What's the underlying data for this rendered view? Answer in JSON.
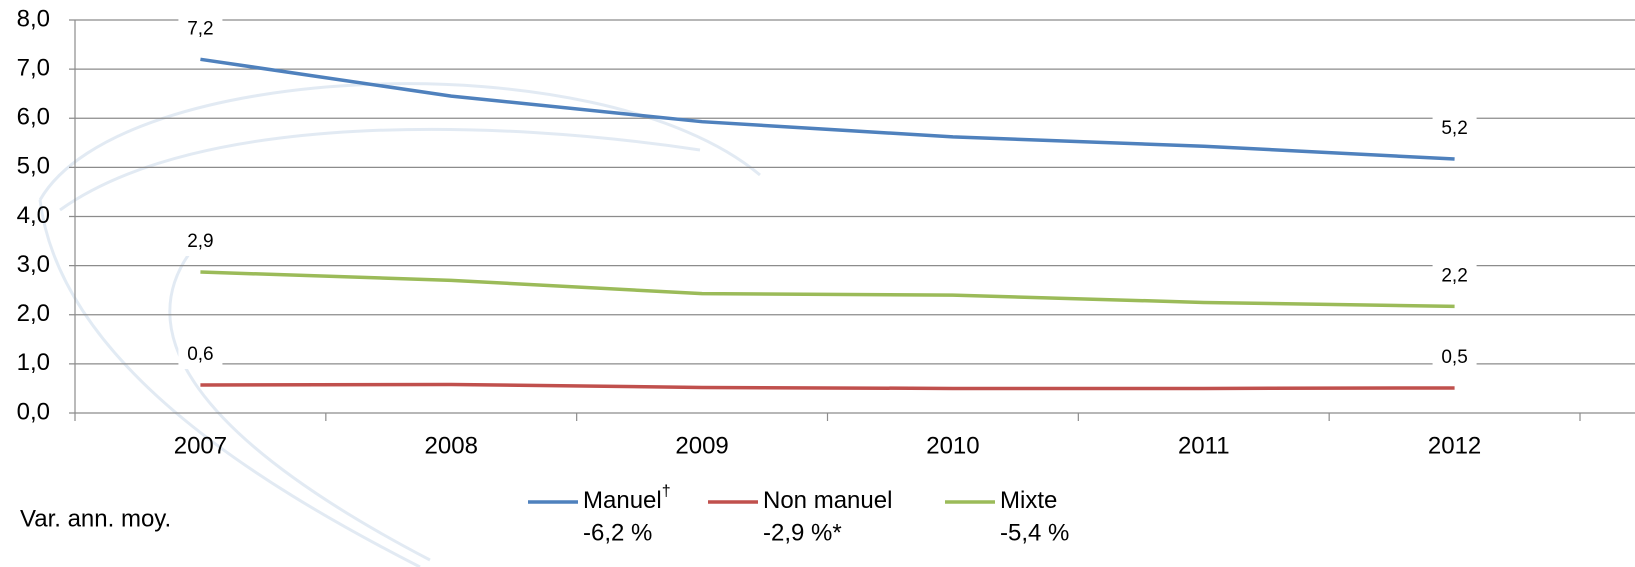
{
  "chart_data": {
    "type": "line",
    "categories": [
      "2007",
      "2008",
      "2009",
      "2010",
      "2011",
      "2012"
    ],
    "series": [
      {
        "name": "Manuel",
        "name_mark": "†",
        "change": "-6,2 %",
        "color": "#4f81bd",
        "values": [
          7.2,
          6.45,
          5.93,
          5.62,
          5.43,
          5.17
        ],
        "value_labels": [
          "7,2",
          null,
          null,
          null,
          null,
          "5,2"
        ]
      },
      {
        "name": "Non manuel",
        "change": "-2,9 %*",
        "color": "#c0504d",
        "values": [
          0.57,
          0.58,
          0.52,
          0.5,
          0.5,
          0.51
        ],
        "value_labels": [
          "0,6",
          null,
          null,
          null,
          null,
          "0,5"
        ]
      },
      {
        "name": "Mixte",
        "change": "-5,4 %",
        "color": "#9bbb59",
        "values": [
          2.87,
          2.7,
          2.43,
          2.4,
          2.25,
          2.17
        ],
        "value_labels": [
          "2,9",
          null,
          null,
          null,
          null,
          "2,2"
        ]
      }
    ],
    "ylim": [
      0,
      8
    ],
    "yticks": [
      {
        "value": 0,
        "label": "0,0"
      },
      {
        "value": 1,
        "label": "1,0"
      },
      {
        "value": 2,
        "label": "2,0"
      },
      {
        "value": 3,
        "label": "3,0"
      },
      {
        "value": 4,
        "label": "4,0"
      },
      {
        "value": 5,
        "label": "5,0"
      },
      {
        "value": 6,
        "label": "6,0"
      },
      {
        "value": 7,
        "label": "7,0"
      },
      {
        "value": 8,
        "label": "8,0"
      }
    ],
    "grid": true,
    "change_caption": "Var. ann. moy."
  }
}
